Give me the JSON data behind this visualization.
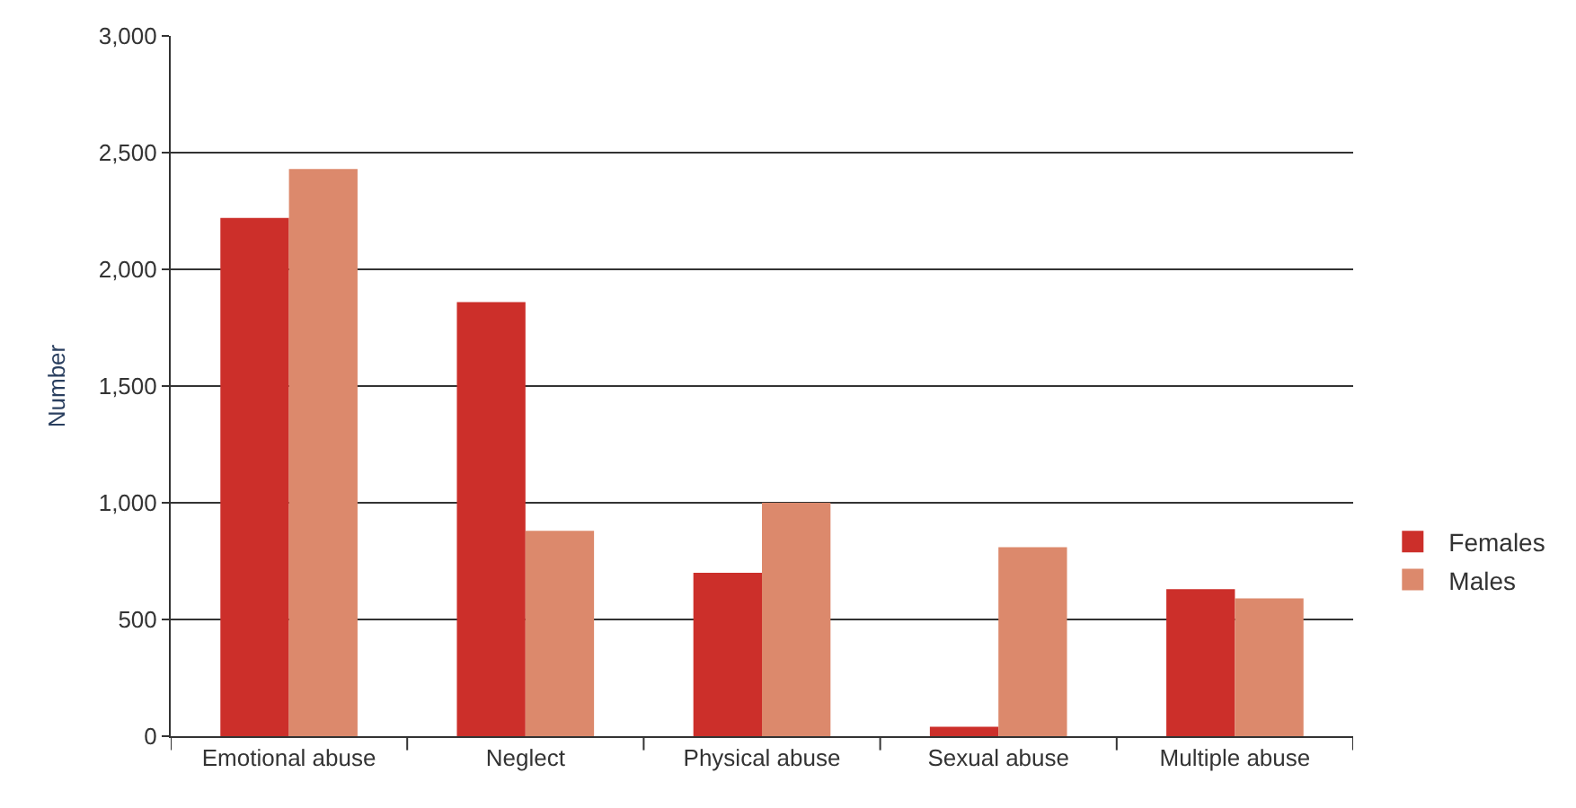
{
  "chart_data": {
    "type": "bar",
    "ylabel": "Number",
    "categories": [
      "Emotional abuse",
      "Neglect",
      "Physical abuse",
      "Sexual abuse",
      "Multiple abuse"
    ],
    "series": [
      {
        "name": "Females",
        "color": "#cc2f2a",
        "values": [
          2220,
          1860,
          700,
          40,
          630
        ]
      },
      {
        "name": "Males",
        "color": "#dc896c",
        "values": [
          2430,
          880,
          1000,
          810,
          590
        ]
      }
    ],
    "ylim": [
      0,
      3000
    ],
    "yticks": [
      {
        "value": 0,
        "label": "0"
      },
      {
        "value": 500,
        "label": "500"
      },
      {
        "value": 1000,
        "label": "1,000"
      },
      {
        "value": 1500,
        "label": "1,500"
      },
      {
        "value": 2000,
        "label": "2,000"
      },
      {
        "value": 2500,
        "label": "2,500"
      },
      {
        "value": 3000,
        "label": "3,000"
      }
    ],
    "grid": "y",
    "legend": "right"
  }
}
